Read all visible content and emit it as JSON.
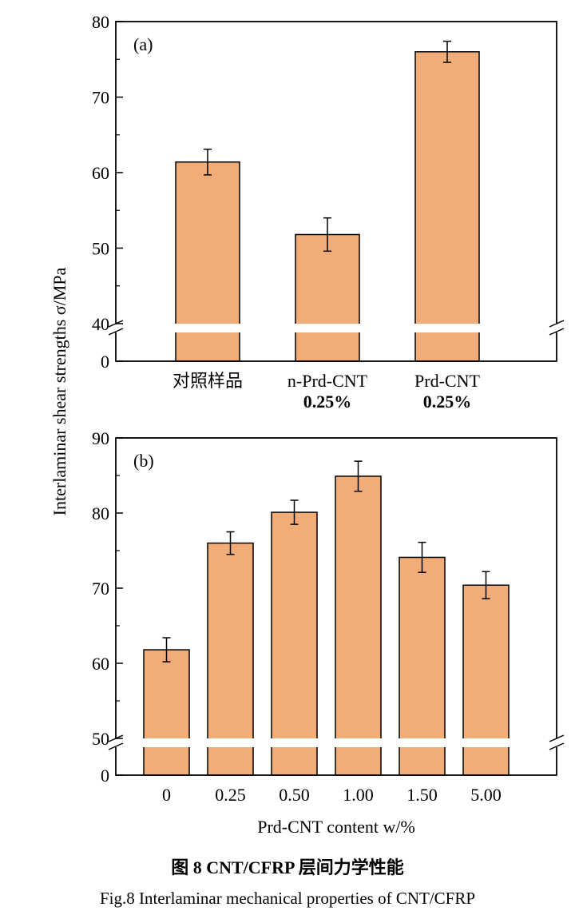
{
  "y_label": "Interlaminar shear strengths  σ/MPa",
  "caption_cn": "图 8   CNT/CFRP 层间力学性能",
  "caption_en": "Fig.8  Interlaminar mechanical properties of CNT/CFRP",
  "colors": {
    "bar": "#F2AC78",
    "edge": "#000000"
  },
  "chart_data": [
    {
      "type": "bar",
      "panel": "(a)",
      "categories": [
        [
          "对照样品"
        ],
        [
          "n-Prd-CNT",
          "0.25%"
        ],
        [
          "Prd-CNT",
          "0.25%"
        ]
      ],
      "values": [
        61.4,
        51.8,
        76.0
      ],
      "errors": [
        1.7,
        2.2,
        1.4
      ],
      "xlabel": "",
      "ylabel": "Interlaminar shear strengths σ/MPa",
      "yticks": [
        0,
        40,
        50,
        60,
        70,
        80
      ],
      "ylim": [
        0,
        80
      ],
      "axis_break": [
        0,
        40
      ]
    },
    {
      "type": "bar",
      "panel": "(b)",
      "categories": [
        [
          "0"
        ],
        [
          "0.25"
        ],
        [
          "0.50"
        ],
        [
          "1.00"
        ],
        [
          "1.50"
        ],
        [
          "5.00"
        ]
      ],
      "values": [
        61.8,
        76.0,
        80.1,
        84.9,
        74.1,
        70.4
      ],
      "errors": [
        1.6,
        1.5,
        1.6,
        2.0,
        2.0,
        1.8
      ],
      "xlabel": "Prd-CNT content  w/%",
      "ylabel": "Interlaminar shear strengths σ/MPa",
      "yticks": [
        0,
        50,
        60,
        70,
        80,
        90
      ],
      "ylim": [
        0,
        90
      ],
      "axis_break": [
        0,
        50
      ]
    }
  ]
}
